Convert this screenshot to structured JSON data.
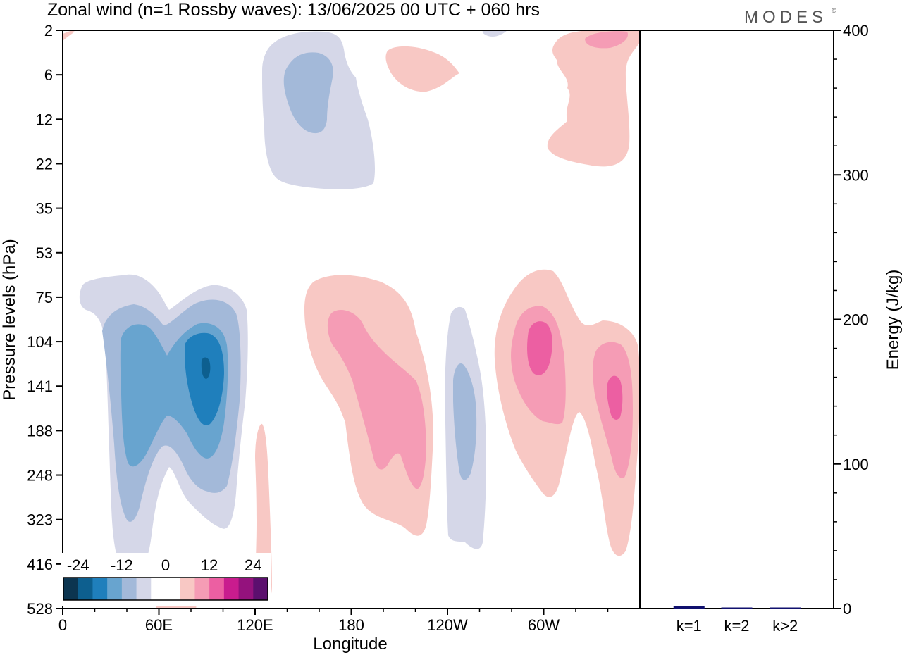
{
  "title": "Zonal wind (n=1 Rossby waves):  13/06/2025  00 UTC  + 060 hrs",
  "brand": "MODES",
  "brand_mark": "©",
  "chart_data": [
    {
      "type": "heatmap",
      "description": "Longitude-pressure cross section of zonal wind anomaly contours",
      "xlabel": "Longitude",
      "ylabel": "Pressure levels (hPa)",
      "x_ticks": [
        "0",
        "60E",
        "120E",
        "180",
        "120W",
        "60W"
      ],
      "x_tick_degrees": [
        0,
        60,
        120,
        180,
        240,
        300
      ],
      "xlim": [
        0,
        360
      ],
      "y_ticks": [
        "2",
        "6",
        "12",
        "22",
        "35",
        "53",
        "75",
        "104",
        "141",
        "188",
        "248",
        "323",
        "416",
        "528"
      ],
      "colorbar": {
        "labels": [
          "-24",
          "-12",
          "0",
          "12",
          "24"
        ],
        "colors": [
          "#0c3550",
          "#0d5f8f",
          "#1f7fbc",
          "#68a4cf",
          "#a3b9d9",
          "#d5d7e8",
          "#ffffff",
          "#ffffff",
          "#f8c8c4",
          "#f59cb5",
          "#ec5fa2",
          "#c91c8e",
          "#94127d",
          "#5c0f6e"
        ]
      },
      "features": [
        {
          "sign": "negative",
          "peak": -20,
          "longitude_deg": 89,
          "pressure_hPa": 130
        },
        {
          "sign": "negative",
          "peak": -14,
          "longitude_deg": 42,
          "pressure_hPa": 150
        },
        {
          "sign": "negative",
          "peak": -8,
          "longitude_deg": 158,
          "pressure_hPa": 8
        },
        {
          "sign": "negative",
          "peak": -8,
          "longitude_deg": 250,
          "pressure_hPa": 200
        },
        {
          "sign": "positive",
          "peak": 16,
          "longitude_deg": 208,
          "pressure_hPa": 150
        },
        {
          "sign": "positive",
          "peak": 18,
          "longitude_deg": 298,
          "pressure_hPa": 115
        },
        {
          "sign": "positive",
          "peak": 18,
          "longitude_deg": 345,
          "pressure_hPa": 170
        },
        {
          "sign": "positive",
          "peak": 6,
          "longitude_deg": 340,
          "pressure_hPa": 8
        }
      ]
    },
    {
      "type": "bar",
      "ylabel": "Energy (J/kg)",
      "ylim": [
        0,
        400
      ],
      "y_ticks": [
        "0",
        "100",
        "200",
        "300",
        "400"
      ],
      "categories": [
        "k=1",
        "k=2",
        "k>2"
      ],
      "values": [
        1.5,
        0.5,
        0.6
      ],
      "bar_color": "#10106e"
    }
  ]
}
